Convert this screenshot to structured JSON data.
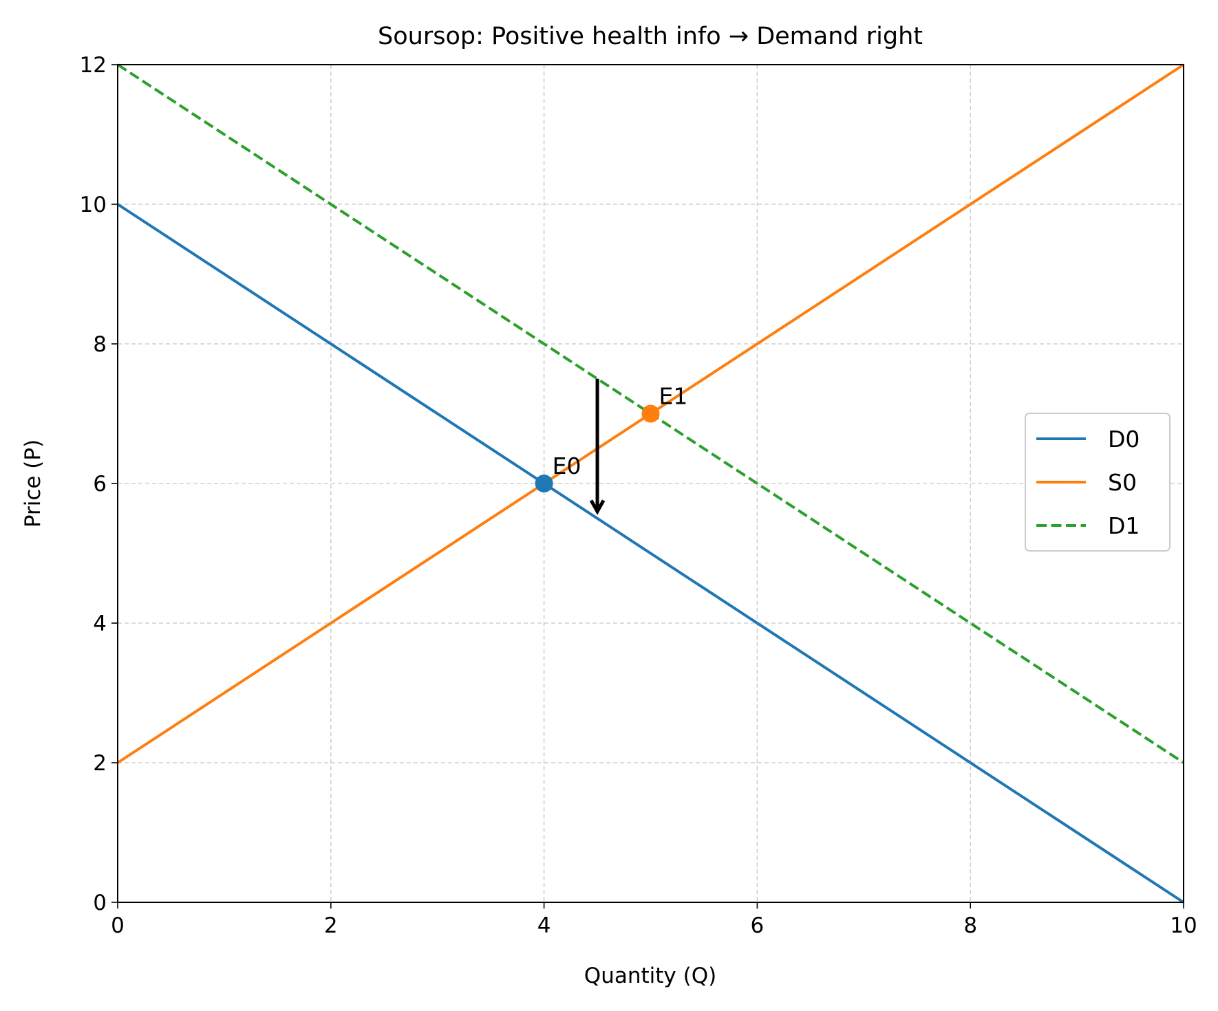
{
  "chart_data": {
    "type": "line",
    "title": "Soursop: Positive health info → Demand right",
    "xlabel": "Quantity (Q)",
    "ylabel": "Price (P)",
    "xlim": [
      0,
      10
    ],
    "ylim": [
      0,
      12
    ],
    "x_ticks": [
      0,
      2,
      4,
      6,
      8,
      10
    ],
    "y_ticks": [
      0,
      2,
      4,
      6,
      8,
      10,
      12
    ],
    "grid": true,
    "legend_position": "center-right",
    "series": [
      {
        "name": "D0",
        "color": "#1f77b4",
        "style": "solid",
        "x": [
          0,
          10
        ],
        "y": [
          10,
          0
        ]
      },
      {
        "name": "S0",
        "color": "#ff7f0e",
        "style": "solid",
        "x": [
          0,
          10
        ],
        "y": [
          2,
          12
        ]
      },
      {
        "name": "D1",
        "color": "#2ca02c",
        "style": "dashed",
        "x": [
          0,
          10
        ],
        "y": [
          12,
          2
        ]
      }
    ],
    "points": [
      {
        "label": "E0",
        "x": 4,
        "y": 6,
        "color": "#1f77b4"
      },
      {
        "label": "E1",
        "x": 5,
        "y": 7,
        "color": "#ff7f0e"
      }
    ],
    "arrow": {
      "x": 4.5,
      "y_from": 7.5,
      "y_to": 5.6,
      "color": "#000000"
    }
  }
}
